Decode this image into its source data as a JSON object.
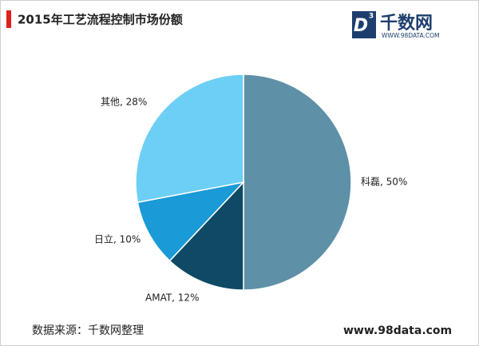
{
  "chart_data": {
    "type": "pie",
    "title": "2015年工艺流程控制市场份额",
    "categories": [
      "科磊",
      "AMAT",
      "日立",
      "其他"
    ],
    "values": [
      50,
      12,
      10,
      28
    ],
    "value_labels": [
      "科磊, 50%",
      "AMAT, 12%",
      "日立, 10%",
      "其他, 28%"
    ],
    "colors": [
      "#5e90a8",
      "#0e4a65",
      "#1a9ad6",
      "#6dcff5"
    ]
  },
  "logo": {
    "mark": "D",
    "superscript": "3",
    "name": "千数网",
    "url": "WWW.98DATA.COM"
  },
  "footer": {
    "source": "数据来源：千数网整理",
    "website": "www.98data.com"
  }
}
